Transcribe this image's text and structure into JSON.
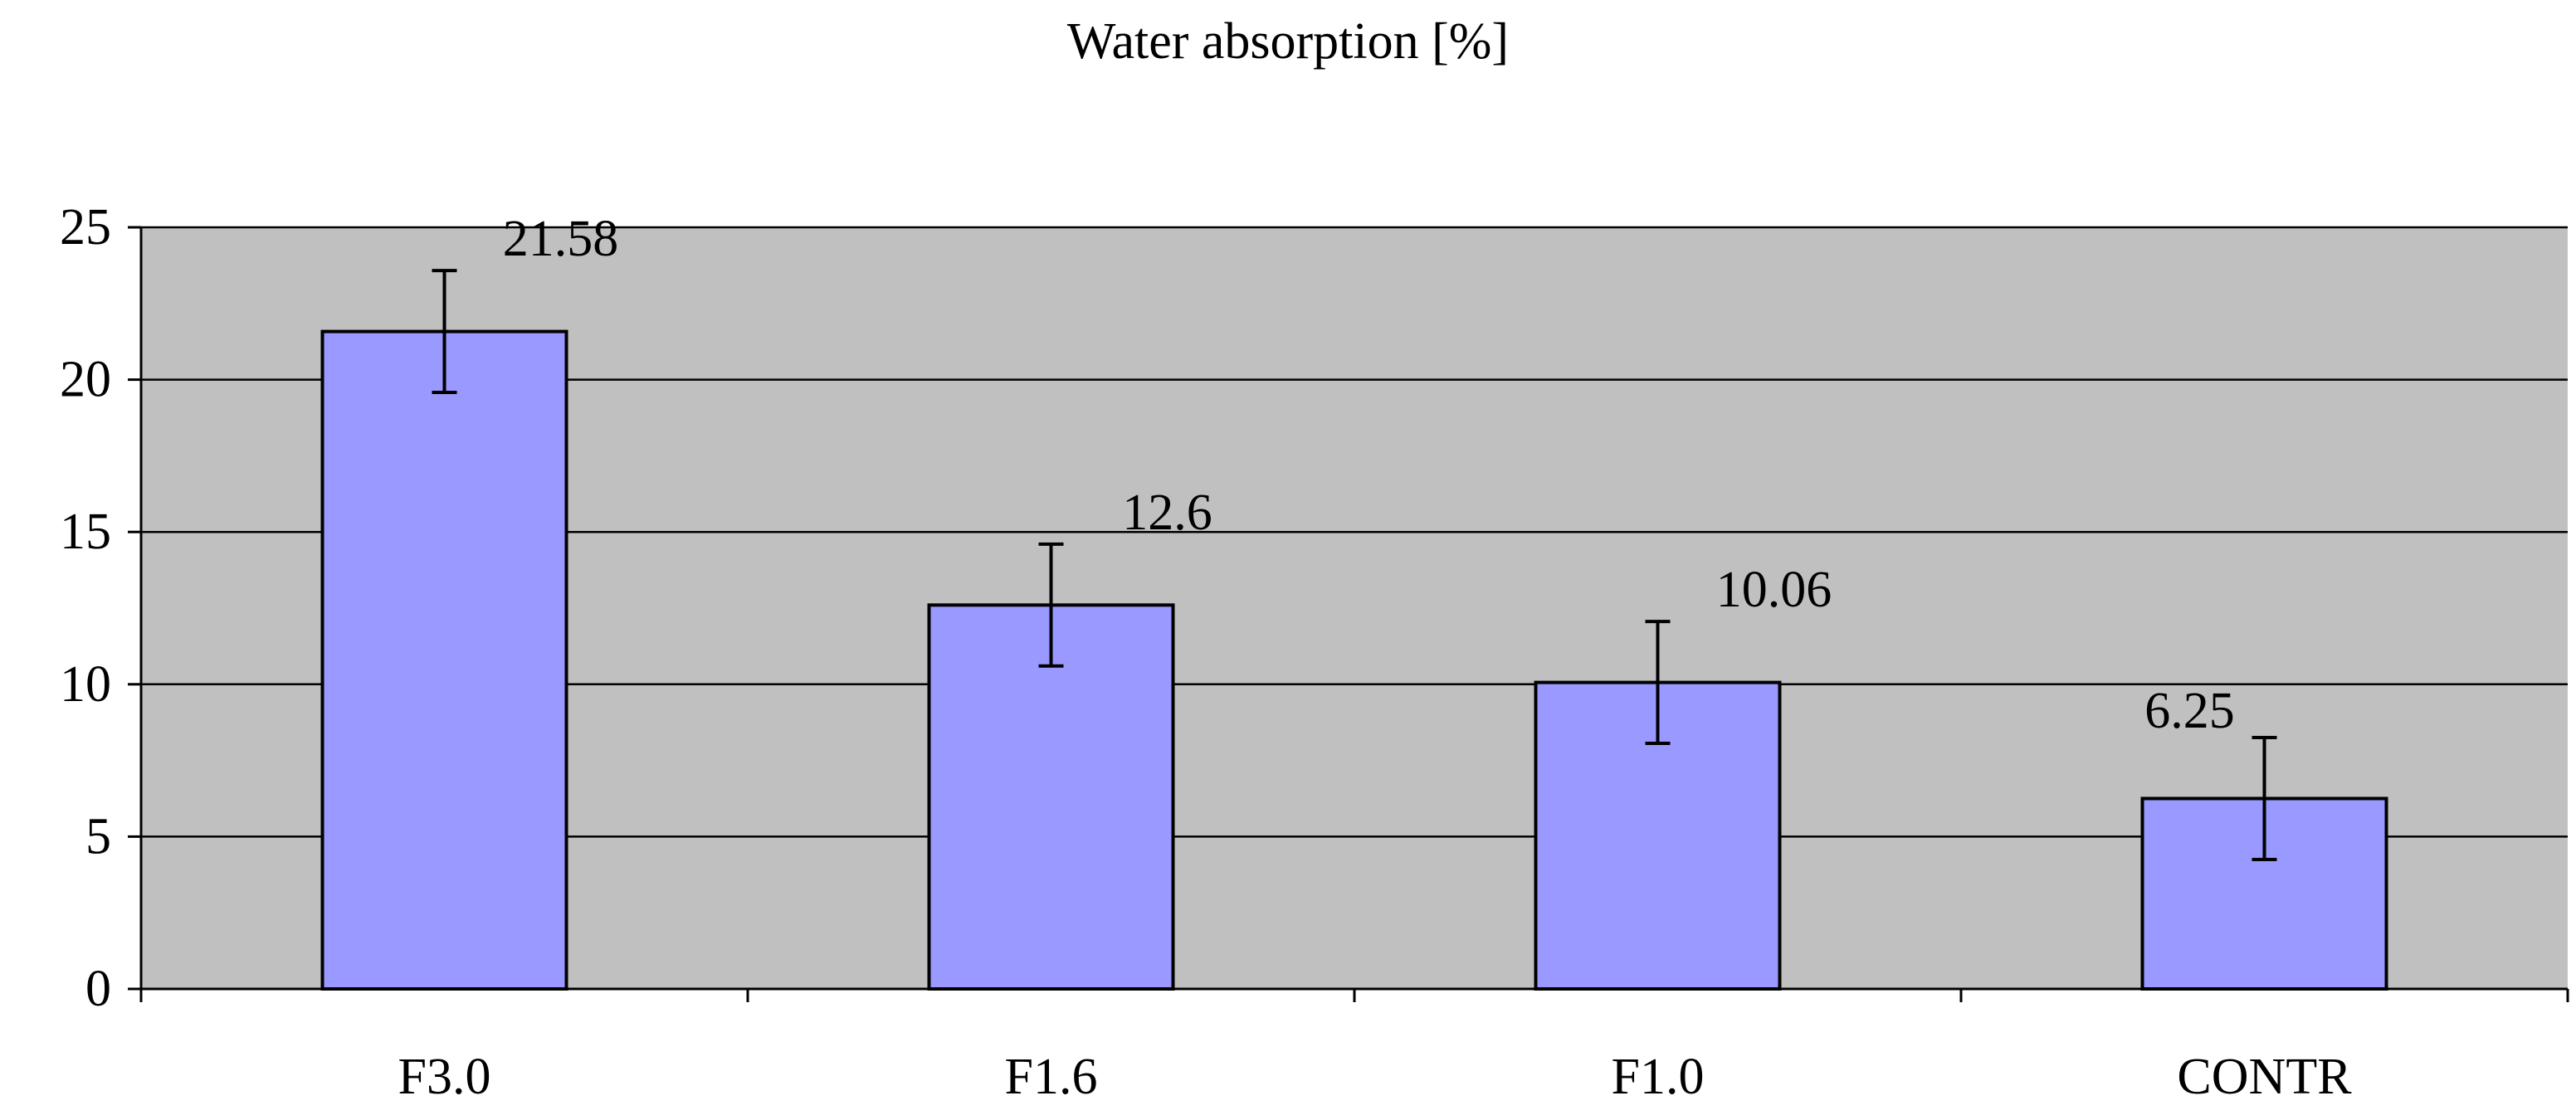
{
  "chart_data": {
    "type": "bar",
    "title": "Water absorption [%]",
    "xlabel": "",
    "ylabel": "",
    "categories": [
      "F3.0",
      "F1.6",
      "F1.0",
      "CONTR"
    ],
    "values": [
      21.58,
      12.6,
      10.06,
      6.25
    ],
    "data_labels": [
      "21.58",
      "12.6",
      "10.06",
      "6.25"
    ],
    "error": [
      2.0,
      2.0,
      2.0,
      2.0
    ],
    "ylim": [
      0,
      25
    ],
    "yticks": [
      0,
      5,
      10,
      15,
      20,
      25
    ],
    "ytick_labels": [
      "0",
      "5",
      "10",
      "15",
      "20",
      "25"
    ],
    "grid": true,
    "legend": "none"
  },
  "colors": {
    "plot_background": "#c0c0c0",
    "bar_fill": "#9999ff",
    "bar_stroke": "#000000",
    "gridline": "#000000",
    "axis": "#000000",
    "text": "#000000"
  }
}
